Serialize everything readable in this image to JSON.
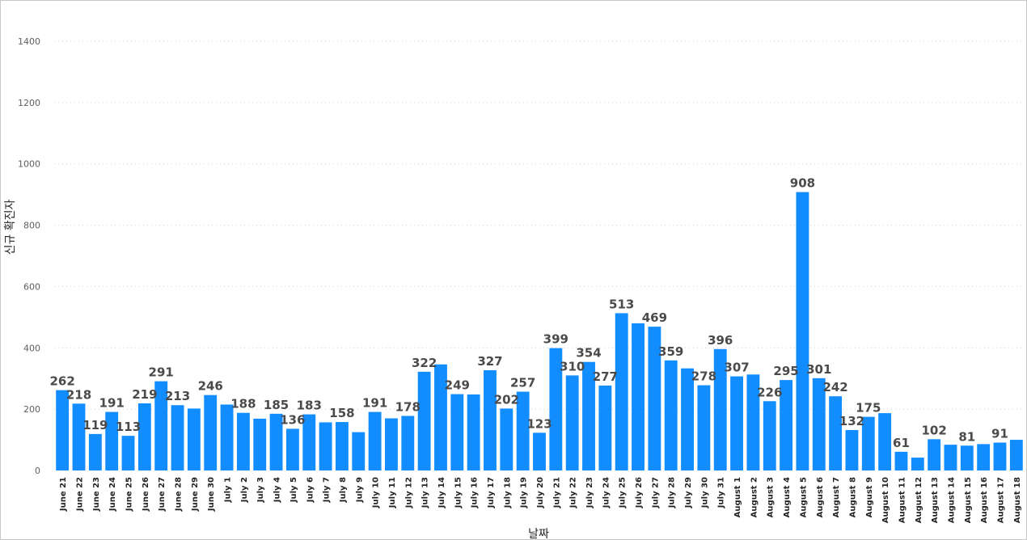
{
  "chart_data": {
    "type": "bar",
    "xlabel": "날짜",
    "ylabel": "신규 확진자",
    "ylim": [
      0,
      1400
    ],
    "yticks": [
      0,
      200,
      400,
      600,
      800,
      1000,
      1200,
      1400
    ],
    "grid": true,
    "bar_color": "#118dff",
    "label_color": "#4a4a4a",
    "categories": [
      "June 21",
      "June 22",
      "June 23",
      "June 24",
      "June 25",
      "June 26",
      "June 27",
      "June 28",
      "June 29",
      "June 30",
      "July 1",
      "July 2",
      "July 3",
      "July 4",
      "July 5",
      "July 6",
      "July 7",
      "July 8",
      "July 9",
      "July 10",
      "July 11",
      "July 12",
      "July 13",
      "July 14",
      "July 15",
      "July 16",
      "July 17",
      "July 18",
      "July 19",
      "July 20",
      "July 21",
      "July 22",
      "July 23",
      "July 24",
      "July 25",
      "July 26",
      "July 27",
      "July 28",
      "July 29",
      "July 30",
      "July 31",
      "August 1",
      "August 2",
      "August 3",
      "August 4",
      "August 5",
      "August 6",
      "August 7",
      "August 8",
      "August 9",
      "August 10",
      "August 11",
      "August 12",
      "August 13",
      "August 14",
      "August 15",
      "August 16",
      "August 17",
      "August 18"
    ],
    "values": [
      262,
      218,
      119,
      191,
      113,
      219,
      291,
      213,
      202,
      246,
      215,
      188,
      169,
      185,
      136,
      183,
      157,
      158,
      125,
      191,
      170,
      178,
      322,
      346,
      249,
      248,
      327,
      202,
      257,
      123,
      399,
      310,
      354,
      277,
      513,
      480,
      469,
      359,
      333,
      278,
      396,
      307,
      313,
      226,
      295,
      908,
      301,
      242,
      132,
      175,
      187,
      61,
      42,
      102,
      84,
      81,
      86,
      91,
      100
    ],
    "data_labels": [
      {
        "index": 0,
        "text": "262"
      },
      {
        "index": 1,
        "text": "218"
      },
      {
        "index": 2,
        "text": "119"
      },
      {
        "index": 3,
        "text": "191"
      },
      {
        "index": 4,
        "text": "113"
      },
      {
        "index": 5,
        "text": "219"
      },
      {
        "index": 6,
        "text": "291"
      },
      {
        "index": 7,
        "text": "213"
      },
      {
        "index": 9,
        "text": "246"
      },
      {
        "index": 11,
        "text": "188"
      },
      {
        "index": 13,
        "text": "185"
      },
      {
        "index": 14,
        "text": "136"
      },
      {
        "index": 15,
        "text": "183"
      },
      {
        "index": 17,
        "text": "158"
      },
      {
        "index": 19,
        "text": "191"
      },
      {
        "index": 21,
        "text": "178"
      },
      {
        "index": 22,
        "text": "322"
      },
      {
        "index": 24,
        "text": "249"
      },
      {
        "index": 26,
        "text": "327"
      },
      {
        "index": 27,
        "text": "202"
      },
      {
        "index": 28,
        "text": "257"
      },
      {
        "index": 29,
        "text": "123"
      },
      {
        "index": 30,
        "text": "399"
      },
      {
        "index": 31,
        "text": "310"
      },
      {
        "index": 32,
        "text": "354"
      },
      {
        "index": 33,
        "text": "277"
      },
      {
        "index": 34,
        "text": "513"
      },
      {
        "index": 36,
        "text": "469"
      },
      {
        "index": 37,
        "text": "359"
      },
      {
        "index": 39,
        "text": "278"
      },
      {
        "index": 40,
        "text": "396"
      },
      {
        "index": 41,
        "text": "307"
      },
      {
        "index": 43,
        "text": "226"
      },
      {
        "index": 44,
        "text": "295"
      },
      {
        "index": 45,
        "text": "908"
      },
      {
        "index": 46,
        "text": "301"
      },
      {
        "index": 47,
        "text": "242"
      },
      {
        "index": 48,
        "text": "132"
      },
      {
        "index": 49,
        "text": "175"
      },
      {
        "index": 51,
        "text": "61"
      },
      {
        "index": 53,
        "text": "102"
      },
      {
        "index": 55,
        "text": "81"
      },
      {
        "index": 57,
        "text": "91"
      }
    ]
  }
}
